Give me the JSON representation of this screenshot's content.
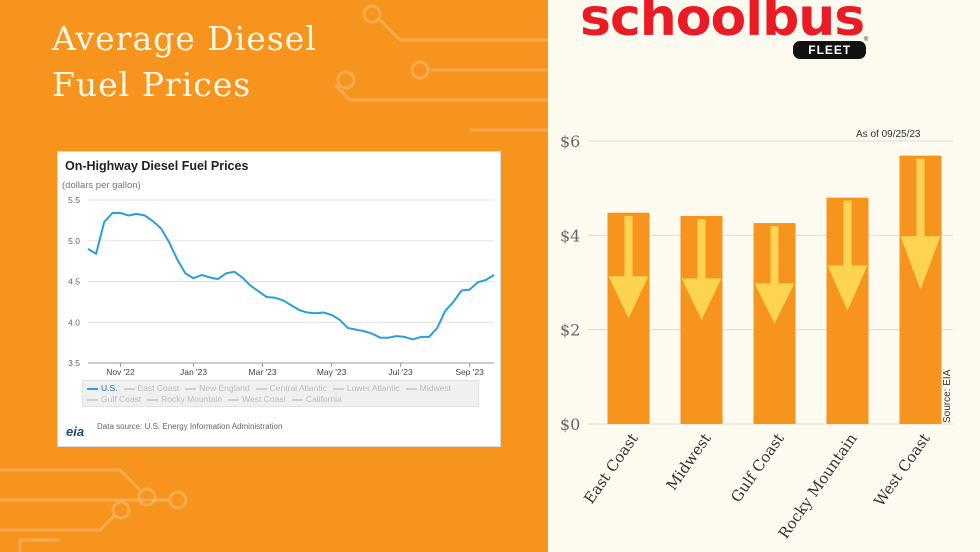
{
  "headline": {
    "line1": "Average Diesel",
    "line2": "Fuel Prices"
  },
  "brand": {
    "name": "schoolbus",
    "sub": "FLEET",
    "reg": "®"
  },
  "colors": {
    "orange": "#f7941d",
    "cream": "#fdfbf0",
    "brand_red": "#ea1b24",
    "arrow_yellow": "#fdd451",
    "eia_line": "#2a9fd8"
  },
  "chart_data": [
    {
      "type": "line",
      "title": "On-Highway Diesel Fuel Prices",
      "ylabel": "(dollars per gallon)",
      "ylim": [
        3.5,
        5.5
      ],
      "y_ticks": [
        "5.5",
        "5.0",
        "4.5",
        "4.0",
        "3.5"
      ],
      "x_tick_labels": [
        "Nov '22",
        "Jan '23",
        "Mar '23",
        "May '23",
        "Jul '23",
        "Sep '23"
      ],
      "x_tick_weeks": [
        4,
        13,
        21.5,
        30,
        38.5,
        47
      ],
      "grid": true,
      "legend": {
        "placement": "bottom",
        "row1": [
          "U.S.",
          "East Coast",
          "New England",
          "Central Atlantic",
          "Lower Atlantic",
          "Midwest"
        ],
        "row2": [
          "Gulf Coast",
          "Rocky Mountain",
          "West Coast",
          "California"
        ],
        "active": "U.S."
      },
      "series": [
        {
          "name": "U.S.",
          "weeks": [
            0,
            1,
            2,
            3,
            4,
            5,
            6,
            7,
            8,
            9,
            10,
            11,
            12,
            13,
            14,
            15,
            16,
            17,
            18,
            19,
            20,
            21,
            22,
            23,
            24,
            25,
            26,
            27,
            28,
            29,
            30,
            31,
            32,
            33,
            34,
            35,
            36,
            37,
            38,
            39,
            40,
            41,
            42,
            43,
            44,
            45,
            46,
            47,
            48,
            49,
            50
          ],
          "values": [
            4.9,
            4.84,
            5.23,
            5.34,
            5.34,
            5.31,
            5.33,
            5.31,
            5.24,
            5.15,
            4.98,
            4.77,
            4.6,
            4.54,
            4.58,
            4.55,
            4.53,
            4.6,
            4.62,
            4.55,
            4.45,
            4.38,
            4.31,
            4.3,
            4.27,
            4.21,
            4.15,
            4.12,
            4.11,
            4.12,
            4.09,
            4.03,
            3.93,
            3.91,
            3.89,
            3.86,
            3.81,
            3.81,
            3.83,
            3.82,
            3.79,
            3.82,
            3.82,
            3.93,
            4.14,
            4.25,
            4.39,
            4.4,
            4.49,
            4.52,
            4.58
          ]
        }
      ],
      "source_note": "Data source: U.S. Energy Information Administration",
      "logo": "eia"
    },
    {
      "type": "bar",
      "as_of": "As of 09/25/23",
      "source": "Source: EIA",
      "categories": [
        "East Coast",
        "Midwest",
        "Gulf Coast",
        "Rocky Mountain",
        "West Coast"
      ],
      "values": [
        4.48,
        4.41,
        4.26,
        4.8,
        5.69
      ],
      "ylim": [
        0,
        6
      ],
      "y_ticks": [
        "$0",
        "$2",
        "$4",
        "$6"
      ],
      "y_tick_values": [
        0,
        2,
        4,
        6
      ],
      "grid": true,
      "decoration": "downward-arrow-in-each-bar"
    }
  ]
}
